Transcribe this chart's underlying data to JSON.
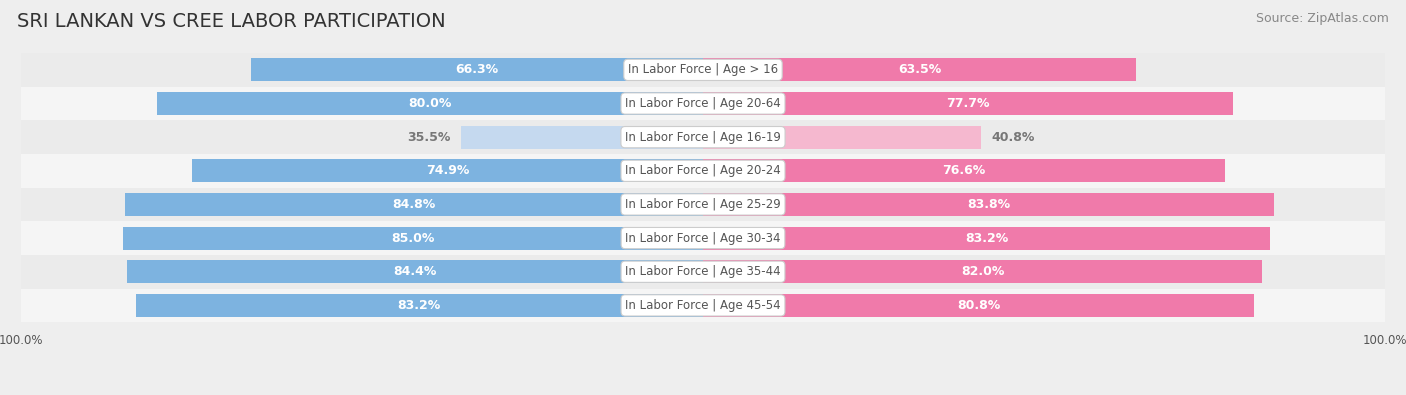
{
  "title": "SRI LANKAN VS CREE LABOR PARTICIPATION",
  "source": "Source: ZipAtlas.com",
  "categories": [
    "In Labor Force | Age > 16",
    "In Labor Force | Age 20-64",
    "In Labor Force | Age 16-19",
    "In Labor Force | Age 20-24",
    "In Labor Force | Age 25-29",
    "In Labor Force | Age 30-34",
    "In Labor Force | Age 35-44",
    "In Labor Force | Age 45-54"
  ],
  "sri_lankan": [
    66.3,
    80.0,
    35.5,
    74.9,
    84.8,
    85.0,
    84.4,
    83.2
  ],
  "cree": [
    63.5,
    77.7,
    40.8,
    76.6,
    83.8,
    83.2,
    82.0,
    80.8
  ],
  "sri_lankan_color_dark": "#7db3e0",
  "sri_lankan_color_light": "#c5d9ef",
  "cree_color_dark": "#f07aaa",
  "cree_color_light": "#f5b8cf",
  "label_color_white": "#ffffff",
  "label_color_dark": "#777777",
  "bar_height": 0.68,
  "background_color": "#eeeeee",
  "row_bg_light": "#f7f7f7",
  "row_bg_dark": "#e8e8e8",
  "max_value": 100.0,
  "center_label_color": "#555555",
  "title_fontsize": 14,
  "label_fontsize": 9,
  "source_fontsize": 9,
  "category_fontsize": 8.5,
  "threshold": 50.0
}
